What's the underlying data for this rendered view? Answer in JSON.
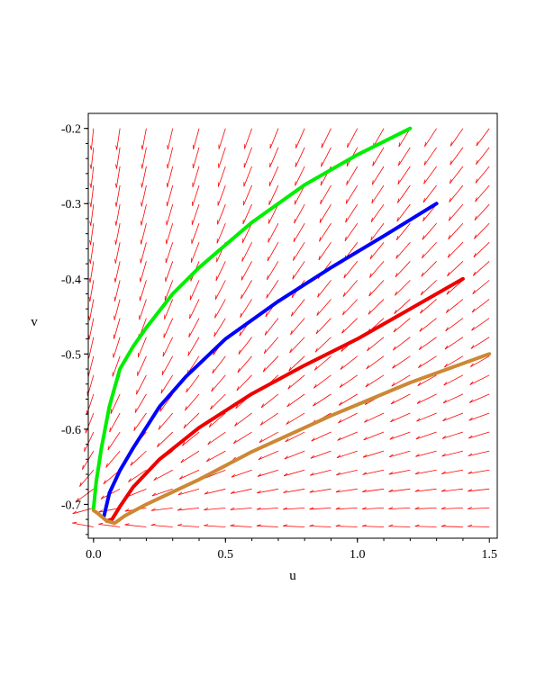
{
  "chart_data": {
    "type": "line",
    "title": "",
    "xlabel": "u",
    "ylabel": "v",
    "xlim": [
      -0.02,
      1.53
    ],
    "ylim": [
      -0.745,
      -0.18
    ],
    "xticks": [
      {
        "value": 0.0,
        "label": "0.0"
      },
      {
        "value": 0.5,
        "label": "0.5"
      },
      {
        "value": 1.0,
        "label": "1.0"
      },
      {
        "value": 1.5,
        "label": "1.5"
      }
    ],
    "yticks": [
      {
        "value": -0.2,
        "label": "-0.2"
      },
      {
        "value": -0.3,
        "label": "-0.3"
      },
      {
        "value": -0.4,
        "label": "-0.4"
      },
      {
        "value": -0.5,
        "label": "-0.5"
      },
      {
        "value": -0.6,
        "label": "-0.6"
      },
      {
        "value": -0.7,
        "label": "-0.7"
      }
    ],
    "grid": false,
    "direction_field": {
      "color": "#ff0000",
      "u_range": [
        0.0,
        1.5
      ],
      "v_range": [
        -0.73,
        -0.2
      ]
    },
    "series": [
      {
        "color": "#00ee00",
        "x": [
          1.2,
          1.0,
          0.8,
          0.6,
          0.4,
          0.3,
          0.2,
          0.15,
          0.1,
          0.06,
          0.03,
          0.01,
          0.0
        ],
        "y": [
          -0.2,
          -0.235,
          -0.275,
          -0.325,
          -0.385,
          -0.42,
          -0.465,
          -0.49,
          -0.52,
          -0.57,
          -0.625,
          -0.67,
          -0.705
        ]
      },
      {
        "color": "#0000ff",
        "x": [
          1.3,
          1.1,
          0.9,
          0.7,
          0.5,
          0.35,
          0.25,
          0.15,
          0.1,
          0.06,
          0.04
        ],
        "y": [
          -0.3,
          -0.343,
          -0.385,
          -0.43,
          -0.48,
          -0.53,
          -0.57,
          -0.625,
          -0.655,
          -0.685,
          -0.715
        ]
      },
      {
        "color": "#ee0000",
        "x": [
          1.4,
          1.2,
          1.0,
          0.8,
          0.6,
          0.4,
          0.25,
          0.15,
          0.1,
          0.07,
          0.05
        ],
        "y": [
          -0.4,
          -0.44,
          -0.48,
          -0.515,
          -0.553,
          -0.598,
          -0.64,
          -0.677,
          -0.703,
          -0.72,
          -0.722
        ]
      },
      {
        "color": "#cc8833",
        "x": [
          1.5,
          1.2,
          0.9,
          0.6,
          0.4,
          0.2,
          0.12,
          0.08,
          0.05,
          0.02,
          0.0
        ],
        "y": [
          -0.5,
          -0.538,
          -0.582,
          -0.63,
          -0.667,
          -0.7,
          -0.715,
          -0.725,
          -0.722,
          -0.713,
          -0.708
        ]
      }
    ]
  }
}
